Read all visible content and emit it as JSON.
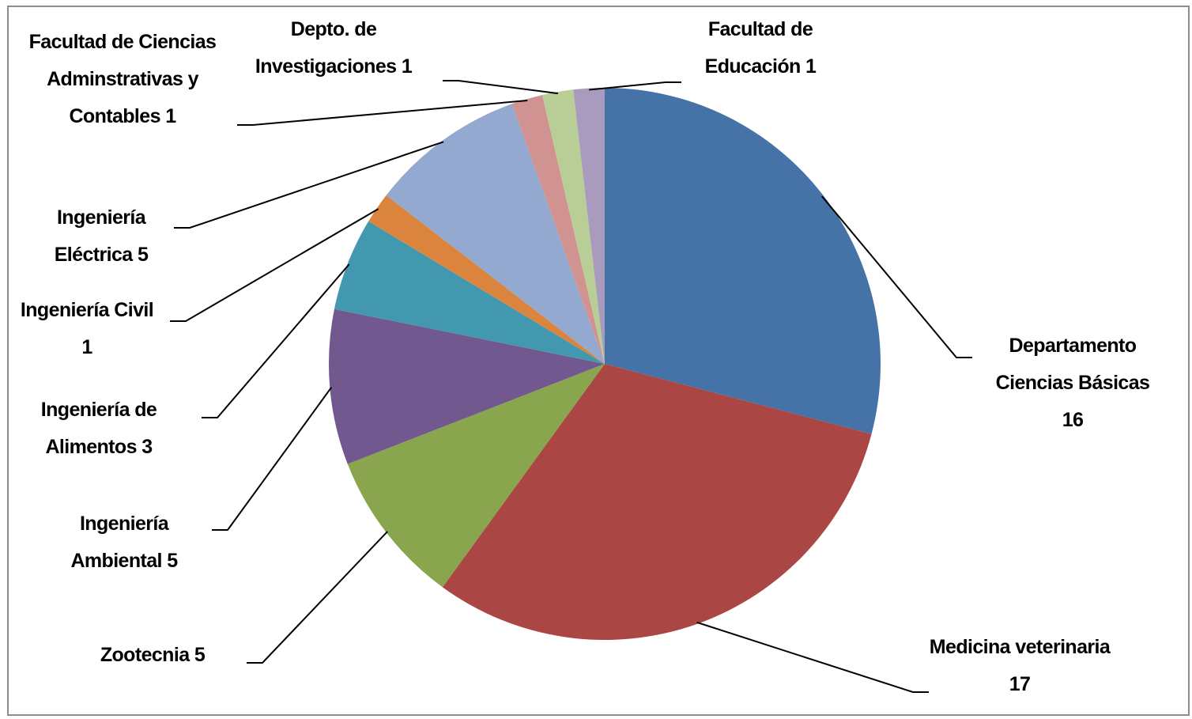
{
  "chart_data": {
    "type": "pie",
    "categories": [
      "Departamento Ciencias Básicas",
      "Medicina veterinaria",
      "Zootecnia",
      "Ingeniería Ambiental",
      "Ingeniería de Alimentos",
      "Ingeniería Civil",
      "Ingeniería Eléctrica",
      "Facultad de Ciencias Adminstrativas y Contables",
      "Depto. de Investigaciones",
      "Facultad de Educación"
    ],
    "values": [
      16,
      17,
      5,
      5,
      3,
      1,
      5,
      1,
      1,
      1
    ],
    "colors": [
      "#4572a7",
      "#aa4643",
      "#89a54e",
      "#71588f",
      "#4198af",
      "#db843d",
      "#93a9cf",
      "#d19392",
      "#b9cd96",
      "#a99bbd"
    ]
  }
}
